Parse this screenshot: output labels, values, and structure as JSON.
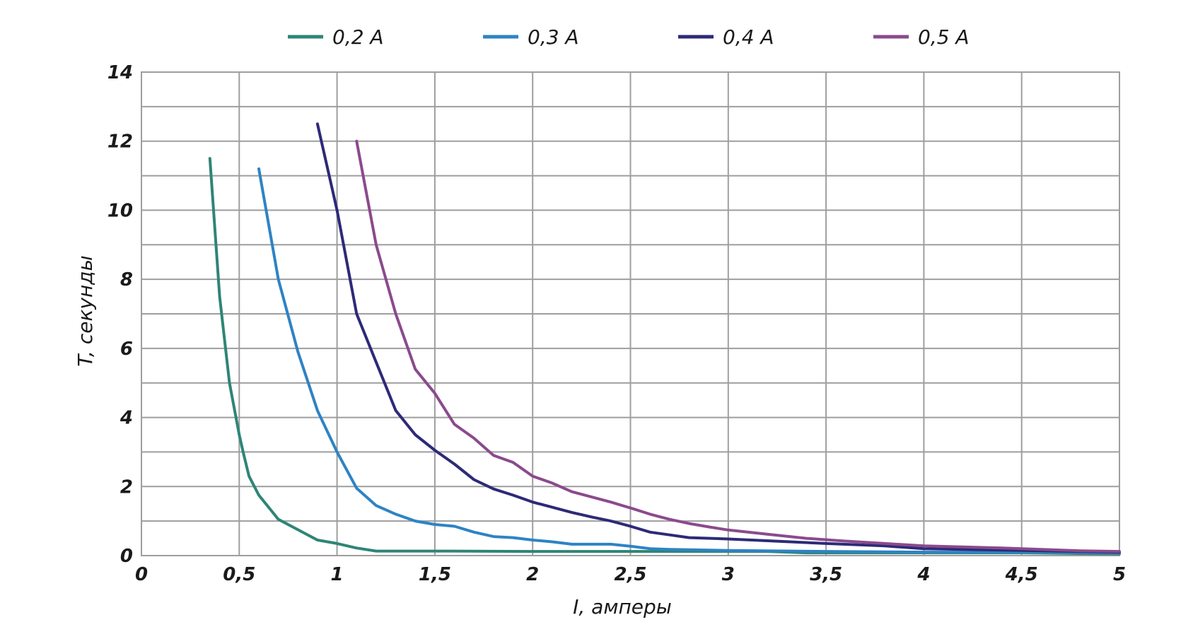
{
  "chart_data": {
    "type": "line",
    "title": "",
    "xlabel": "I, амперы",
    "ylabel": "T, секунды",
    "xlim": [
      0,
      5
    ],
    "ylim": [
      0,
      14
    ],
    "grid": true,
    "legend_position": "top",
    "x_ticks": [
      0,
      0.5,
      1,
      1.5,
      2,
      2.5,
      3,
      3.5,
      4,
      4.5,
      5
    ],
    "x_tick_labels": [
      "0",
      "0,5",
      "1",
      "1,5",
      "2",
      "2,5",
      "3",
      "3,5",
      "4",
      "4,5",
      "5"
    ],
    "y_ticks": [
      0,
      2,
      4,
      6,
      8,
      10,
      12,
      14
    ],
    "y_tick_labels": [
      "0",
      "2",
      "4",
      "6",
      "8",
      "10",
      "12",
      "14"
    ],
    "y_minor_step": 1,
    "x_minor_step": 0.5,
    "series": [
      {
        "name": "0,2 A",
        "color": "#2e8577",
        "points": [
          [
            0.35,
            11.5
          ],
          [
            0.4,
            7.5
          ],
          [
            0.45,
            5.0
          ],
          [
            0.5,
            3.5
          ],
          [
            0.52,
            3.0
          ],
          [
            0.55,
            2.3
          ],
          [
            0.6,
            1.75
          ],
          [
            0.7,
            1.05
          ],
          [
            0.8,
            0.75
          ],
          [
            0.9,
            0.45
          ],
          [
            1.0,
            0.35
          ],
          [
            1.1,
            0.22
          ],
          [
            1.2,
            0.13
          ],
          [
            1.5,
            0.13
          ],
          [
            2.0,
            0.12
          ],
          [
            2.5,
            0.12
          ],
          [
            3.0,
            0.12
          ],
          [
            3.2,
            0.12
          ],
          [
            3.4,
            0.08
          ],
          [
            4.0,
            0.08
          ],
          [
            4.5,
            0.08
          ],
          [
            5.0,
            0.05
          ]
        ]
      },
      {
        "name": "0,3 A",
        "color": "#2e83c4",
        "points": [
          [
            0.6,
            11.2
          ],
          [
            0.7,
            8.0
          ],
          [
            0.8,
            5.9
          ],
          [
            0.9,
            4.2
          ],
          [
            1.0,
            3.0
          ],
          [
            1.1,
            1.95
          ],
          [
            1.2,
            1.45
          ],
          [
            1.3,
            1.2
          ],
          [
            1.4,
            1.0
          ],
          [
            1.5,
            0.9
          ],
          [
            1.6,
            0.85
          ],
          [
            1.7,
            0.68
          ],
          [
            1.8,
            0.55
          ],
          [
            1.9,
            0.52
          ],
          [
            2.0,
            0.45
          ],
          [
            2.1,
            0.4
          ],
          [
            2.2,
            0.33
          ],
          [
            2.3,
            0.33
          ],
          [
            2.4,
            0.33
          ],
          [
            2.5,
            0.27
          ],
          [
            2.6,
            0.2
          ],
          [
            2.7,
            0.18
          ],
          [
            3.0,
            0.15
          ],
          [
            3.5,
            0.12
          ],
          [
            4.0,
            0.1
          ],
          [
            4.5,
            0.1
          ],
          [
            5.0,
            0.08
          ]
        ]
      },
      {
        "name": "0,4 A",
        "color": "#2d2a78",
        "points": [
          [
            0.9,
            12.5
          ],
          [
            1.0,
            10.0
          ],
          [
            1.1,
            7.0
          ],
          [
            1.2,
            5.6
          ],
          [
            1.3,
            4.2
          ],
          [
            1.4,
            3.5
          ],
          [
            1.5,
            3.05
          ],
          [
            1.6,
            2.65
          ],
          [
            1.7,
            2.2
          ],
          [
            1.8,
            1.93
          ],
          [
            1.9,
            1.75
          ],
          [
            2.0,
            1.55
          ],
          [
            2.1,
            1.4
          ],
          [
            2.2,
            1.25
          ],
          [
            2.3,
            1.12
          ],
          [
            2.4,
            1.0
          ],
          [
            2.5,
            0.85
          ],
          [
            2.6,
            0.68
          ],
          [
            2.7,
            0.6
          ],
          [
            2.8,
            0.52
          ],
          [
            3.0,
            0.48
          ],
          [
            3.2,
            0.43
          ],
          [
            3.5,
            0.35
          ],
          [
            3.8,
            0.28
          ],
          [
            4.0,
            0.2
          ],
          [
            4.5,
            0.15
          ],
          [
            5.0,
            0.1
          ]
        ]
      },
      {
        "name": "0,5 A",
        "color": "#8b4a8d",
        "points": [
          [
            1.1,
            12.0
          ],
          [
            1.2,
            9.0
          ],
          [
            1.3,
            7.0
          ],
          [
            1.4,
            5.4
          ],
          [
            1.5,
            4.7
          ],
          [
            1.6,
            3.8
          ],
          [
            1.7,
            3.4
          ],
          [
            1.8,
            2.9
          ],
          [
            1.9,
            2.7
          ],
          [
            2.0,
            2.3
          ],
          [
            2.1,
            2.1
          ],
          [
            2.2,
            1.85
          ],
          [
            2.3,
            1.7
          ],
          [
            2.4,
            1.55
          ],
          [
            2.5,
            1.38
          ],
          [
            2.6,
            1.2
          ],
          [
            2.7,
            1.05
          ],
          [
            2.8,
            0.93
          ],
          [
            2.9,
            0.83
          ],
          [
            3.0,
            0.74
          ],
          [
            3.2,
            0.62
          ],
          [
            3.4,
            0.5
          ],
          [
            3.6,
            0.42
          ],
          [
            3.8,
            0.35
          ],
          [
            4.0,
            0.28
          ],
          [
            4.2,
            0.25
          ],
          [
            4.4,
            0.22
          ],
          [
            4.6,
            0.18
          ],
          [
            4.8,
            0.14
          ],
          [
            5.0,
            0.12
          ]
        ]
      }
    ]
  }
}
